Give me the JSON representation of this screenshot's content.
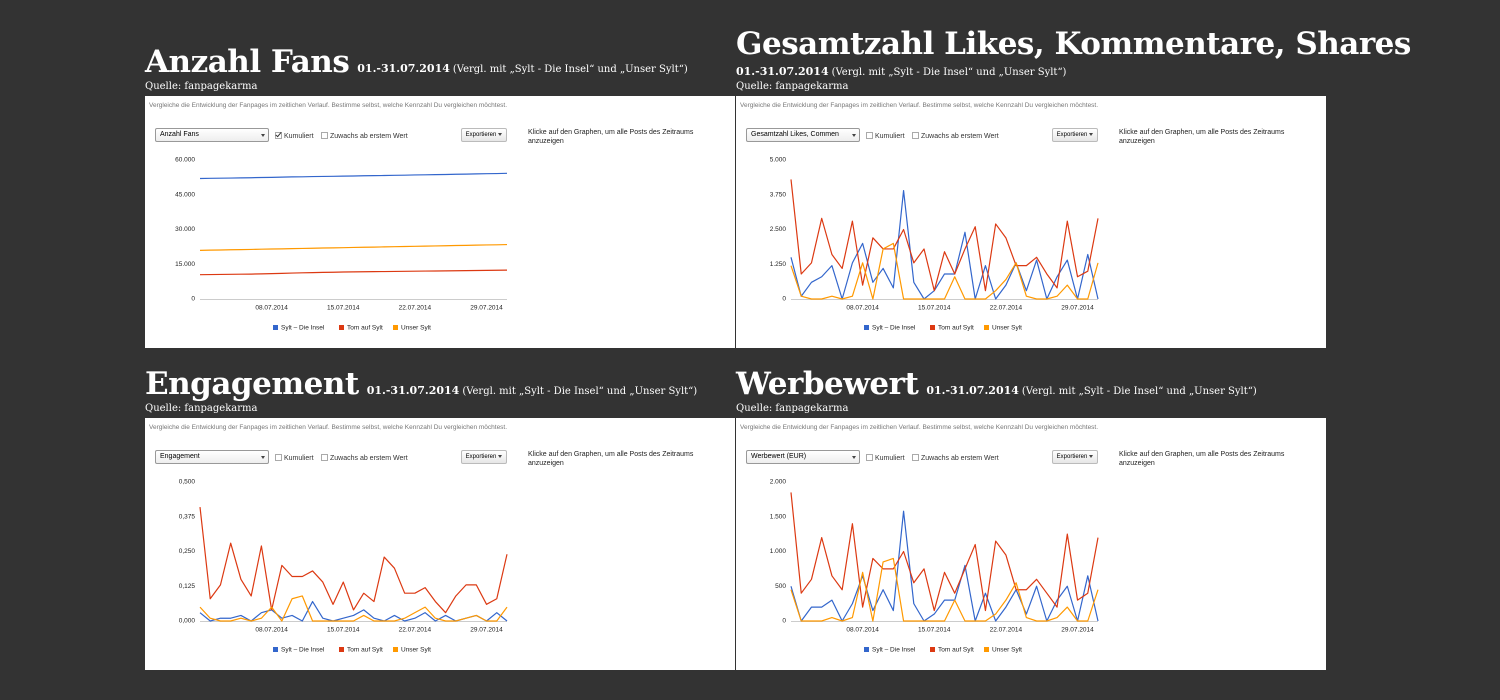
{
  "chart_data": [
    {
      "type": "line",
      "title": "Anzahl Fans",
      "subtitle_date": "01.-31.07.2014",
      "subtitle_note": "(Vergl. mit „Sylt - Die Insel“ und „Unser Sylt“)",
      "source": "Quelle: fanpagekarma",
      "description": "Vergleiche die Entwicklung der Fanpages im zeitlichen Verlauf. Bestimme selbst, welche Kennzahl Du vergleichen möchtest.",
      "selector": "Anzahl Fans",
      "option_cumulative": "Kumuliert",
      "option_growth": "Zuwachs ab erstem Wert",
      "cumulative_checked": true,
      "export_button": "Exportieren",
      "hint": "Klicke auf den Graphen, um alle Posts des Zeitraums anzuzeigen",
      "categories": [
        null,
        null,
        null,
        null,
        null,
        null,
        null,
        "08.07.2014",
        null,
        null,
        null,
        null,
        null,
        null,
        "15.07.2014",
        null,
        null,
        null,
        null,
        null,
        null,
        "22.07.2014",
        null,
        null,
        null,
        null,
        null,
        null,
        "29.07.2014",
        null,
        null
      ],
      "ylim": [
        0,
        60000
      ],
      "yticks": [
        0,
        {
          "value": 15000,
          "label": "15.000"
        },
        {
          "value": 30000,
          "label": "30.000"
        },
        {
          "value": 45000,
          "label": "45.000"
        },
        {
          "value": 60000,
          "label": "60.000"
        }
      ],
      "series": [
        {
          "name": "Sylt – Die Insel",
          "color": "#3366cc",
          "values": [
            52000,
            52100,
            52150,
            52200,
            52300,
            52350,
            52450,
            52500,
            52600,
            52700,
            52750,
            52850,
            52900,
            52950,
            53050,
            53100,
            53200,
            53250,
            53300,
            53400,
            53450,
            53550,
            53600,
            53700,
            53750,
            53850,
            53900,
            54000,
            54100,
            54150,
            54250
          ]
        },
        {
          "name": "Tom auf Sylt",
          "color": "#dc3912",
          "values": [
            10500,
            10550,
            10600,
            10650,
            10700,
            10750,
            10850,
            10950,
            11050,
            11200,
            11300,
            11400,
            11500,
            11550,
            11650,
            11700,
            11750,
            11800,
            11850,
            11900,
            11950,
            12000,
            12050,
            12100,
            12150,
            12200,
            12250,
            12300,
            12350,
            12400,
            12450
          ]
        },
        {
          "name": "Unser Sylt",
          "color": "#ff9900",
          "values": [
            21000,
            21080,
            21150,
            21250,
            21330,
            21400,
            21500,
            21580,
            21650,
            21750,
            21830,
            21900,
            22000,
            22080,
            22150,
            22250,
            22330,
            22400,
            22500,
            22580,
            22650,
            22750,
            22830,
            22900,
            23000,
            23080,
            23150,
            23250,
            23330,
            23400,
            23500
          ]
        }
      ]
    },
    {
      "type": "line",
      "title": "Gesamtzahl Likes, Kommentare, Shares",
      "subtitle_date": "01.-31.07.2014",
      "subtitle_note": "(Vergl. mit „Sylt - Die Insel“ und „Unser Sylt“)",
      "source": "Quelle: fanpagekarma",
      "description": "Vergleiche die Entwicklung der Fanpages im zeitlichen Verlauf. Bestimme selbst, welche Kennzahl Du vergleichen möchtest.",
      "selector": "Gesamtzahl Likes, Commen",
      "option_cumulative": "Kumuliert",
      "option_growth": "Zuwachs ab erstem Wert",
      "cumulative_checked": false,
      "export_button": "Exportieren",
      "hint": "Klicke auf den Graphen, um alle Posts des Zeitraums anzuzeigen",
      "categories": [
        null,
        null,
        null,
        null,
        null,
        null,
        null,
        "08.07.2014",
        null,
        null,
        null,
        null,
        null,
        null,
        "15.07.2014",
        null,
        null,
        null,
        null,
        null,
        null,
        "22.07.2014",
        null,
        null,
        null,
        null,
        null,
        null,
        "29.07.2014",
        null,
        null
      ],
      "ylim": [
        0,
        5000
      ],
      "yticks": [
        0,
        {
          "value": 1250,
          "label": "1.250"
        },
        {
          "value": 2500,
          "label": "2.500"
        },
        {
          "value": 3750,
          "label": "3.750"
        },
        {
          "value": 5000,
          "label": "5.000"
        }
      ],
      "series": [
        {
          "name": "Sylt – Die Insel",
          "color": "#3366cc",
          "values": [
            1500,
            100,
            600,
            800,
            1200,
            0,
            1300,
            2000,
            600,
            1100,
            400,
            3900,
            600,
            0,
            300,
            900,
            900,
            2400,
            0,
            1200,
            0,
            500,
            1300,
            300,
            1400,
            0,
            800,
            1400,
            0,
            1600,
            0
          ]
        },
        {
          "name": "Tom auf Sylt",
          "color": "#dc3912",
          "values": [
            4300,
            900,
            1300,
            2900,
            1600,
            1100,
            2800,
            500,
            2200,
            1800,
            1800,
            2500,
            1300,
            1800,
            300,
            1700,
            900,
            1800,
            2600,
            300,
            2700,
            2200,
            1200,
            1200,
            1500,
            900,
            400,
            2800,
            800,
            1000,
            2900
          ]
        },
        {
          "name": "Unser Sylt",
          "color": "#ff9900",
          "values": [
            1200,
            100,
            0,
            0,
            100,
            0,
            100,
            1300,
            0,
            1800,
            2000,
            0,
            0,
            0,
            0,
            0,
            800,
            0,
            0,
            0,
            300,
            700,
            1300,
            100,
            0,
            0,
            100,
            500,
            0,
            0,
            1300
          ]
        }
      ]
    },
    {
      "type": "line",
      "title": "Engagement",
      "subtitle_date": "01.-31.07.2014",
      "subtitle_note": "(Vergl. mit „Sylt - Die Insel“ und „Unser Sylt“)",
      "source": "Quelle: fanpagekarma",
      "description": "Vergleiche die Entwicklung der Fanpages im zeitlichen Verlauf. Bestimme selbst, welche Kennzahl Du vergleichen möchtest.",
      "selector": "Engagement",
      "option_cumulative": "Kumuliert",
      "option_growth": "Zuwachs ab erstem Wert",
      "cumulative_checked": false,
      "export_button": "Exportieren",
      "hint": "Klicke auf den Graphen, um alle Posts des Zeitraums anzuzeigen",
      "categories": [
        null,
        null,
        null,
        null,
        null,
        null,
        null,
        "08.07.2014",
        null,
        null,
        null,
        null,
        null,
        null,
        "15.07.2014",
        null,
        null,
        null,
        null,
        null,
        null,
        "22.07.2014",
        null,
        null,
        null,
        null,
        null,
        null,
        "29.07.2014",
        null,
        null
      ],
      "ylim": [
        0,
        0.5
      ],
      "yticks": [
        {
          "value": 0,
          "label": "0,000"
        },
        {
          "value": 0.125,
          "label": "0,125"
        },
        {
          "value": 0.25,
          "label": "0,250"
        },
        {
          "value": 0.375,
          "label": "0,375"
        },
        {
          "value": 0.5,
          "label": "0,500"
        }
      ],
      "series": [
        {
          "name": "Sylt – Die Insel",
          "color": "#3366cc",
          "values": [
            0.03,
            0,
            0.01,
            0.01,
            0.02,
            0,
            0.03,
            0.04,
            0.01,
            0.02,
            0,
            0.07,
            0.01,
            0,
            0.01,
            0.02,
            0.04,
            0.01,
            0,
            0.02,
            0,
            0.01,
            0.03,
            0,
            0.02,
            0,
            0.01,
            0.02,
            0,
            0.03,
            0
          ]
        },
        {
          "name": "Tom auf Sylt",
          "color": "#dc3912",
          "values": [
            0.41,
            0.08,
            0.13,
            0.28,
            0.15,
            0.09,
            0.27,
            0.04,
            0.2,
            0.16,
            0.16,
            0.18,
            0.14,
            0.06,
            0.14,
            0.04,
            0.1,
            0.07,
            0.23,
            0.19,
            0.1,
            0.1,
            0.12,
            0.07,
            0.03,
            0.09,
            0.13,
            0.13,
            0.06,
            0.08,
            0.24
          ]
        },
        {
          "name": "Unser Sylt",
          "color": "#ff9900",
          "values": [
            0.05,
            0.01,
            0,
            0,
            0.01,
            0,
            0.01,
            0.05,
            0,
            0.08,
            0.09,
            0,
            0,
            0,
            0,
            0,
            0.02,
            0,
            0,
            0,
            0.01,
            0.03,
            0.05,
            0.01,
            0,
            0,
            0.01,
            0.02,
            0,
            0,
            0.05
          ]
        }
      ]
    },
    {
      "type": "line",
      "title": "Werbewert",
      "subtitle_date": "01.-31.07.2014",
      "subtitle_note": "(Vergl. mit „Sylt - Die Insel“ und „Unser Sylt“)",
      "source": "Quelle: fanpagekarma",
      "description": "Vergleiche die Entwicklung der Fanpages im zeitlichen Verlauf. Bestimme selbst, welche Kennzahl Du vergleichen möchtest.",
      "selector": "Werbewert (EUR)",
      "option_cumulative": "Kumuliert",
      "option_growth": "Zuwachs ab erstem Wert",
      "cumulative_checked": false,
      "export_button": "Exportieren",
      "hint": "Klicke auf den Graphen, um alle Posts des Zeitraums anzuzeigen",
      "categories": [
        null,
        null,
        null,
        null,
        null,
        null,
        null,
        "08.07.2014",
        null,
        null,
        null,
        null,
        null,
        null,
        "15.07.2014",
        null,
        null,
        null,
        null,
        null,
        null,
        "22.07.2014",
        null,
        null,
        null,
        null,
        null,
        null,
        "29.07.2014",
        null,
        null
      ],
      "ylim": [
        0,
        2000
      ],
      "yticks": [
        0,
        500,
        {
          "value": 1000,
          "label": "1.000"
        },
        {
          "value": 1500,
          "label": "1.500"
        },
        {
          "value": 2000,
          "label": "2.000"
        }
      ],
      "series": [
        {
          "name": "Sylt – Die Insel",
          "color": "#3366cc",
          "values": [
            500,
            0,
            200,
            200,
            300,
            0,
            250,
            650,
            150,
            450,
            150,
            1580,
            250,
            0,
            100,
            300,
            300,
            800,
            0,
            400,
            0,
            200,
            450,
            100,
            500,
            0,
            300,
            500,
            0,
            650,
            0
          ]
        },
        {
          "name": "Tom auf Sylt",
          "color": "#dc3912",
          "values": [
            1850,
            400,
            600,
            1200,
            650,
            450,
            1400,
            200,
            900,
            750,
            750,
            1000,
            550,
            750,
            150,
            700,
            400,
            750,
            1100,
            150,
            1150,
            950,
            450,
            450,
            600,
            400,
            200,
            1250,
            300,
            400,
            1200
          ]
        },
        {
          "name": "Unser Sylt",
          "color": "#ff9900",
          "values": [
            450,
            0,
            0,
            0,
            50,
            0,
            50,
            700,
            0,
            850,
            900,
            0,
            0,
            0,
            0,
            0,
            300,
            0,
            0,
            0,
            100,
            300,
            550,
            50,
            0,
            0,
            50,
            200,
            0,
            0,
            450
          ]
        }
      ]
    }
  ]
}
